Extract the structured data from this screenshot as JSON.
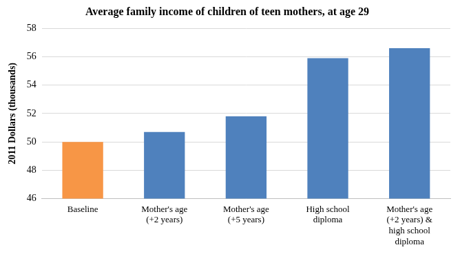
{
  "chart_data": {
    "type": "bar",
    "title": "Average family income of children of teen mothers, at age 29",
    "y_label": "2011 Dollars (thousands)",
    "categories": [
      "Baseline",
      "Mother's age (+2 years)",
      "Mother's age (+5 years)",
      "High school diploma",
      "Mother's age (+2 years) & high school diploma"
    ],
    "values": [
      50.0,
      50.7,
      51.8,
      55.9,
      56.6
    ],
    "colors": [
      "#f79646",
      "#4f81bd",
      "#4f81bd",
      "#4f81bd",
      "#4f81bd"
    ],
    "ylim": [
      46,
      58
    ],
    "yticks": [
      46,
      48,
      50,
      52,
      54,
      56,
      58
    ],
    "grid": true
  }
}
